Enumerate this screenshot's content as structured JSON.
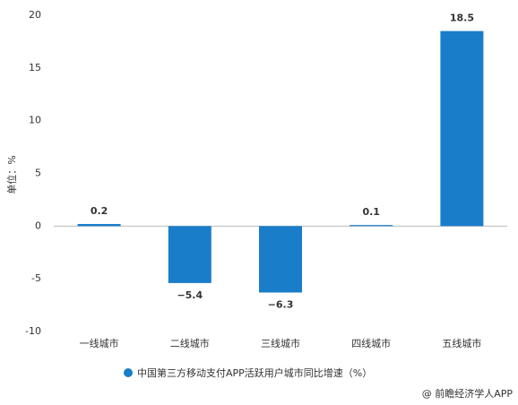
{
  "chart_data": {
    "type": "bar",
    "categories": [
      "一线城市",
      "二线城市",
      "三线城市",
      "四线城市",
      "五线城市"
    ],
    "series": [
      {
        "name": "中国第三方移动支付APP活跃用户城市同比增速（%）",
        "color": "#1a7dc9",
        "values": [
          0.2,
          -5.4,
          -6.3,
          0.1,
          18.5
        ],
        "value_labels": [
          "0.2",
          "−5.4",
          "−6.3",
          "0.1",
          "18.5"
        ]
      }
    ],
    "y_label": "单位：%",
    "ylim": [
      -10,
      20
    ],
    "yticks": [
      -10,
      -5,
      0,
      5,
      10,
      15,
      20
    ],
    "grid": false,
    "legend": "bottom",
    "source": "@ 前瞻经济学人APP"
  }
}
